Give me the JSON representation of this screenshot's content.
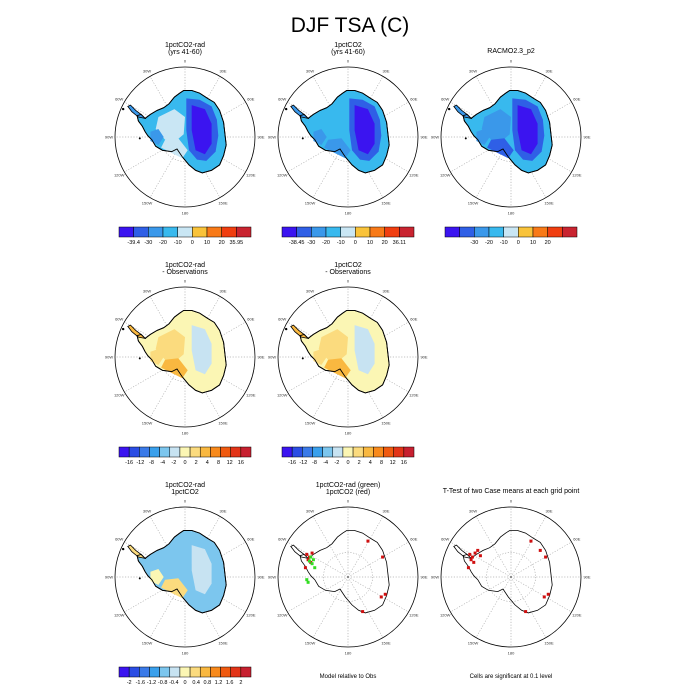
{
  "title": "DJF TSA (C)",
  "lon_labels": [
    "0",
    "30E",
    "60E",
    "90E",
    "120E",
    "150E",
    "180",
    "150W",
    "120W",
    "90W",
    "60W",
    "30W"
  ],
  "chart_data": [
    {
      "type": "heatmap",
      "title": "1pctCO2-rad",
      "subtitle": "(yrs 41-60)",
      "colorbar": {
        "colors": [
          "#3b14f0",
          "#2f5fe6",
          "#3a98ea",
          "#38b9ee",
          "#c9e6f4",
          "#f9c33a",
          "#f87a18",
          "#f03e10",
          "#c92430"
        ],
        "ticks": [
          "-39.4",
          "-30",
          "-20",
          "-10",
          "0",
          "10",
          "20",
          "35.95"
        ]
      }
    },
    {
      "type": "heatmap",
      "title": "1pctCO2",
      "subtitle": "(yrs 41-60)",
      "colorbar": {
        "colors": [
          "#3b14f0",
          "#2f5fe6",
          "#3a98ea",
          "#38b9ee",
          "#c9e6f4",
          "#f9c33a",
          "#f87a18",
          "#f03e10",
          "#c92430"
        ],
        "ticks": [
          "-38.45",
          "-30",
          "-20",
          "-10",
          "0",
          "10",
          "20",
          "36.11"
        ]
      }
    },
    {
      "type": "heatmap",
      "title": "RACMO2.3_p2",
      "subtitle": "",
      "colorbar": {
        "colors": [
          "#3b14f0",
          "#2f5fe6",
          "#3a98ea",
          "#38b9ee",
          "#c9e6f4",
          "#f9c33a",
          "#f87a18",
          "#f03e10",
          "#c92430"
        ],
        "ticks": [
          "",
          "-30",
          "-20",
          "-10",
          "0",
          "10",
          "20",
          ""
        ]
      }
    },
    {
      "type": "heatmap",
      "title": "1pctCO2-rad",
      "subtitle": "- Observations",
      "colorbar": {
        "colors": [
          "#3b14f0",
          "#2b4de4",
          "#3a7ae8",
          "#3aa0ec",
          "#7cc6ee",
          "#c7e3f2",
          "#fbf6b4",
          "#fbdb7e",
          "#f9b840",
          "#f88a1c",
          "#f05a10",
          "#e23418",
          "#c72030"
        ],
        "ticks": [
          "-16",
          "-12",
          "-8",
          "-4",
          "-2",
          "0",
          "2",
          "4",
          "8",
          "12",
          "16"
        ]
      }
    },
    {
      "type": "heatmap",
      "title": "1pctCO2",
      "subtitle": "- Observations",
      "colorbar": {
        "colors": [
          "#3b14f0",
          "#2b4de4",
          "#3a7ae8",
          "#3aa0ec",
          "#7cc6ee",
          "#c7e3f2",
          "#fbf6b4",
          "#fbdb7e",
          "#f9b840",
          "#f88a1c",
          "#f05a10",
          "#e23418",
          "#c72030"
        ],
        "ticks": [
          "-16",
          "-12",
          "-8",
          "-4",
          "-2",
          "0",
          "2",
          "4",
          "8",
          "12",
          "16"
        ]
      }
    },
    {
      "type": "heatmap",
      "title": "1pctCO2-rad",
      "subtitle": "1pctCO2",
      "colorbar": {
        "colors": [
          "#3b14f0",
          "#2b4de4",
          "#3a7ae8",
          "#3aa0ec",
          "#7cc6ee",
          "#c7e3f2",
          "#fbf6b4",
          "#fbdb7e",
          "#f9b840",
          "#f88a1c",
          "#f05a10",
          "#e23418",
          "#c72030"
        ],
        "ticks": [
          "-2",
          "-1.6",
          "-1.2",
          "-0.8",
          "-0.4",
          "0",
          "0.4",
          "0.8",
          "1.2",
          "1.6",
          "2"
        ]
      }
    },
    {
      "type": "heatmap",
      "title": "1pctCO2-rad (green)",
      "subtitle": "1pctCO2 (red)",
      "footnote": "Model relative to Obs",
      "colorbar": null
    },
    {
      "type": "heatmap",
      "title": "T-Test of two Case means at each grid point",
      "subtitle": "",
      "footnote": "Cells are significant at 0.1 level",
      "colorbar": null
    }
  ]
}
